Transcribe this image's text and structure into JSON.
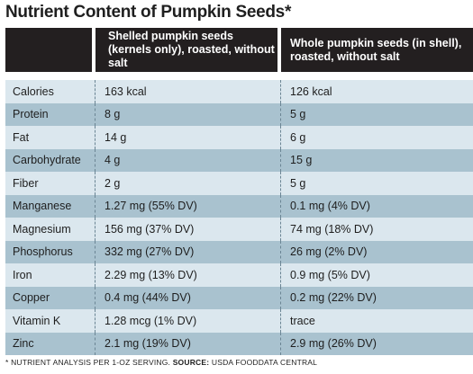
{
  "title": "Nutrient Content of Pumpkin Seeds*",
  "table": {
    "headers": [
      "",
      "Shelled pumpkin seeds (kernels only), roasted, without salt",
      "Whole pumpkin seeds (in shell), roasted, without salt"
    ],
    "rows": [
      [
        "Calories",
        "163 kcal",
        "126 kcal"
      ],
      [
        "Protein",
        "8 g",
        "5 g"
      ],
      [
        "Fat",
        "14 g",
        "6 g"
      ],
      [
        "Carbohydrate",
        "4 g",
        "15 g"
      ],
      [
        "Fiber",
        "2 g",
        "5 g"
      ],
      [
        "Manganese",
        "1.27 mg (55% DV)",
        "0.1 mg (4% DV)"
      ],
      [
        "Magnesium",
        "156 mg (37% DV)",
        "74 mg (18% DV)"
      ],
      [
        "Phosphorus",
        "332 mg (27% DV)",
        "26 mg (2% DV)"
      ],
      [
        "Iron",
        "2.29 mg (13% DV)",
        "0.9 mg (5% DV)"
      ],
      [
        "Copper",
        "0.4 mg (44% DV)",
        "0.2 mg (22% DV)"
      ],
      [
        "Vitamin K",
        "1.28 mcg (1% DV)",
        "trace"
      ],
      [
        "Zinc",
        "2.1 mg (19% DV)",
        "2.9 mg (26% DV)"
      ]
    ]
  },
  "footnote": {
    "note": "* NUTRIENT ANALYSIS PER 1-OZ SERVING.",
    "source_label": "SOURCE:",
    "source_value": "USDA FOODDATA CENTRAL"
  },
  "colors": {
    "header_bg": "#231f20",
    "row_light": "#dbe7ee",
    "row_dark": "#a9c2cf"
  }
}
